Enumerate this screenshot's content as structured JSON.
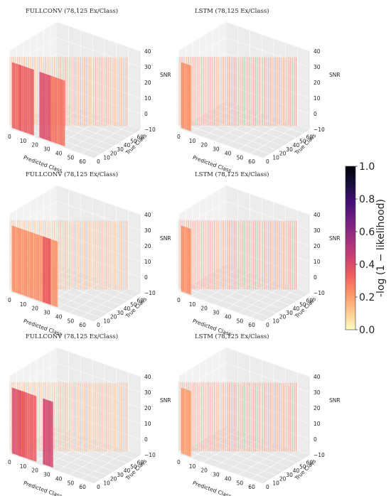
{
  "chart_data": [
    {
      "type": "3d-bar",
      "title": "FULLCONV (78,125 Ex/Class)",
      "xlabel": "Predicted Class",
      "ylabel": "True Class",
      "zlabel": "SNR",
      "xticks": [
        "0",
        "10",
        "20",
        "30",
        "40",
        "50",
        "60"
      ],
      "yticks": [
        "0",
        "10",
        "20",
        "30",
        "40",
        "50",
        "60"
      ],
      "zticks": [
        "−10",
        "0",
        "10",
        "20",
        "30",
        "40"
      ],
      "xlim": [
        0,
        70
      ],
      "ylim": [
        0,
        70
      ],
      "zlim": [
        -10,
        40
      ],
      "slabs": [
        {
          "x": [
            2,
            9
          ],
          "y": 0,
          "intensity": 0.28
        },
        {
          "x": [
            8,
            20
          ],
          "y": 0,
          "intensity": 0.3
        },
        {
          "x": [
            25,
            35
          ],
          "y": 0,
          "intensity": 0.35
        },
        {
          "x": [
            34,
            46
          ],
          "y": 0,
          "intensity": 0.25
        }
      ],
      "diagonal_intensity": 0.15
    },
    {
      "type": "3d-bar",
      "title": "LSTM (78,125 Ex/Class)",
      "xlabel": "Predicted Class",
      "ylabel": "True Class",
      "zlabel": "SNR",
      "xticks": [
        "0",
        "10",
        "20",
        "30",
        "40",
        "50",
        "60"
      ],
      "yticks": [
        "0",
        "10",
        "20",
        "30",
        "40",
        "50",
        "60"
      ],
      "zticks": [
        "−10",
        "0",
        "10",
        "20",
        "30",
        "40"
      ],
      "xlim": [
        0,
        70
      ],
      "ylim": [
        0,
        70
      ],
      "zlim": [
        -10,
        40
      ],
      "slabs": [
        {
          "x": [
            2,
            10
          ],
          "y": 0,
          "intensity": 0.18
        }
      ],
      "diagonal_intensity": 0.2
    },
    {
      "type": "3d-bar",
      "title": "FULLCONV (78,125 Ex/Class)",
      "xlabel": "Predicted Class",
      "ylabel": "True Class",
      "zlabel": "SNR",
      "xticks": [
        "0",
        "10",
        "20",
        "30",
        "40",
        "50",
        "60"
      ],
      "yticks": [
        "0",
        "10",
        "20",
        "30",
        "40",
        "50",
        "60"
      ],
      "zticks": [
        "−10",
        "0",
        "10",
        "20",
        "30",
        "40"
      ],
      "xlim": [
        0,
        70
      ],
      "ylim": [
        0,
        70
      ],
      "zlim": [
        -10,
        40
      ],
      "slabs": [
        {
          "x": [
            2,
            40
          ],
          "y": 0,
          "intensity": 0.18
        },
        {
          "x": [
            28,
            34
          ],
          "y": 0,
          "intensity": 0.3
        }
      ],
      "diagonal_intensity": 0.12
    },
    {
      "type": "3d-bar",
      "title": "LSTM (78,125 Ex/Class)",
      "xlabel": "Predicted Class",
      "ylabel": "True Class",
      "zlabel": "SNR",
      "xticks": [
        "0",
        "10",
        "20",
        "30",
        "40",
        "50",
        "60"
      ],
      "yticks": [
        "0",
        "10",
        "20",
        "30",
        "40",
        "50",
        "60"
      ],
      "zticks": [
        "−10",
        "0",
        "10",
        "20",
        "30",
        "40"
      ],
      "xlim": [
        0,
        70
      ],
      "ylim": [
        0,
        70
      ],
      "zlim": [
        -10,
        40
      ],
      "slabs": [
        {
          "x": [
            2,
            10
          ],
          "y": 0,
          "intensity": 0.18
        }
      ],
      "diagonal_intensity": 0.2
    },
    {
      "type": "3d-bar",
      "title": "FULLCONV (78,125 Ex/Class)",
      "xlabel": "Predicted Class",
      "ylabel": "True Class",
      "zlabel": "SNR",
      "xticks": [
        "0",
        "10",
        "20",
        "30",
        "40",
        "50",
        "60"
      ],
      "yticks": [
        "0",
        "10",
        "20",
        "30",
        "40",
        "50",
        "60"
      ],
      "zticks": [
        "−10",
        "0",
        "10",
        "20",
        "30",
        "40"
      ],
      "xlim": [
        0,
        70
      ],
      "ylim": [
        0,
        70
      ],
      "zlim": [
        -10,
        40
      ],
      "slabs": [
        {
          "x": [
            2,
            12
          ],
          "y": 0,
          "intensity": 0.35
        },
        {
          "x": [
            8,
            22
          ],
          "y": 0,
          "intensity": 0.3
        },
        {
          "x": [
            28,
            36
          ],
          "y": 0,
          "intensity": 0.38
        }
      ],
      "diagonal_intensity": 0.12
    },
    {
      "type": "3d-bar",
      "title": "LSTM (78,125 Ex/Class)",
      "xlabel": "Predicted Class",
      "ylabel": "True Class",
      "zlabel": "SNR",
      "xticks": [
        "0",
        "10",
        "20",
        "30",
        "40",
        "50",
        "60"
      ],
      "yticks": [
        "0",
        "10",
        "20",
        "30",
        "40",
        "50",
        "60"
      ],
      "zticks": [
        "−10",
        "0",
        "10",
        "20",
        "30",
        "40"
      ],
      "xlim": [
        0,
        70
      ],
      "ylim": [
        0,
        70
      ],
      "zlim": [
        -10,
        40
      ],
      "slabs": [
        {
          "x": [
            2,
            10
          ],
          "y": 0,
          "intensity": 0.15
        }
      ],
      "diagonal_intensity": 0.2
    }
  ],
  "colorbar": {
    "label": "-log (1 − likelihood)",
    "ticks": [
      "0.0",
      "0.2",
      "0.4",
      "0.6",
      "0.8",
      "1.0"
    ],
    "range": [
      0,
      1
    ],
    "colormap": "magma_r",
    "stops": [
      "#fcfdbf",
      "#fec98d",
      "#fd9567",
      "#f1605d",
      "#cd4071",
      "#9e2f7f",
      "#721f81",
      "#440f76",
      "#180f3d",
      "#000004"
    ]
  }
}
